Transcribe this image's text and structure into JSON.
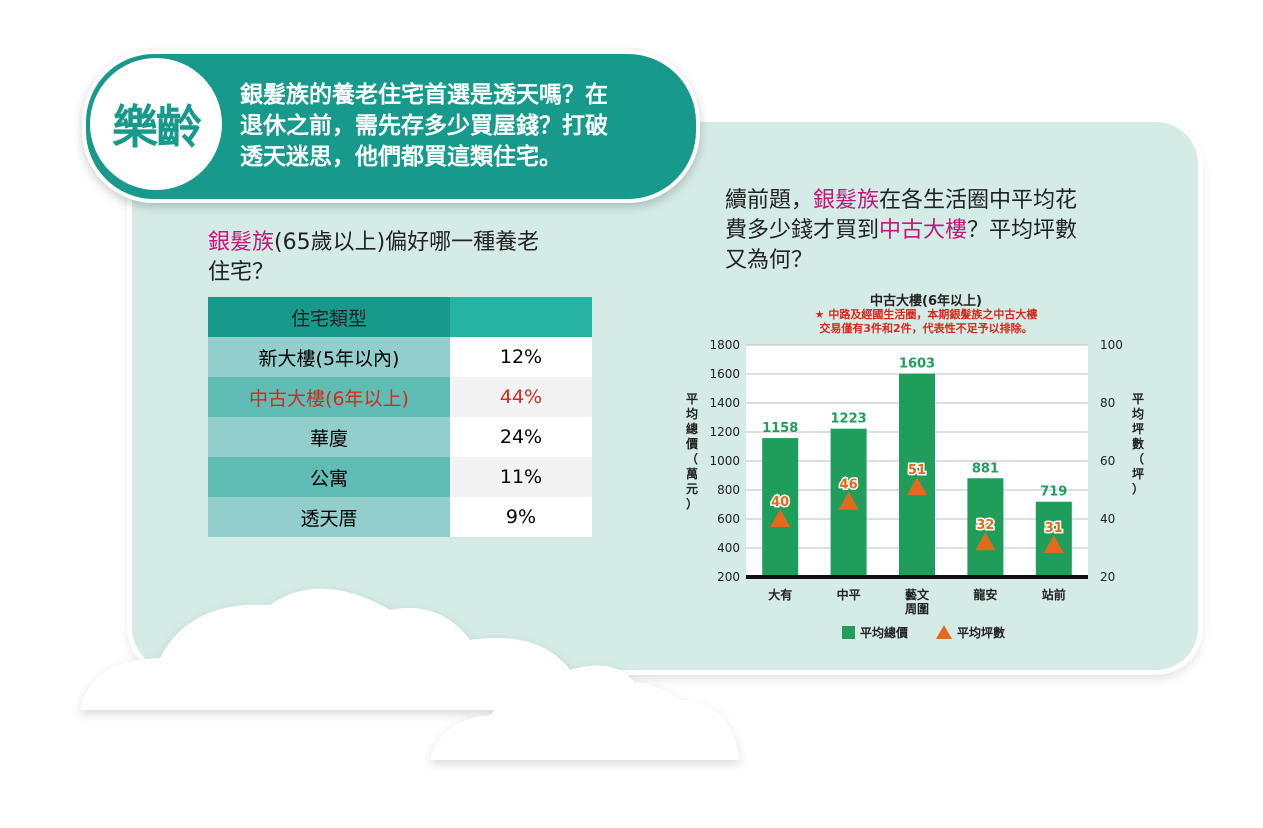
{
  "brand": "樂齡",
  "headline": [
    "銀髮族的養老住宅首選是透天嗎？在",
    "退休之前，需先存多少買屋錢？打破",
    "透天迷思，他們都買這類住宅。"
  ],
  "q1": {
    "pink": "銀髮族",
    "rest_line1": "(65歲以上)偏好哪一種養老",
    "line2": "住宅？"
  },
  "table": {
    "header": "住宅類型",
    "rows": [
      {
        "type": "新大樓(5年以內)",
        "value": "12%"
      },
      {
        "type": "中古大樓(6年以上)",
        "value": "44%"
      },
      {
        "type": "華廈",
        "value": "24%"
      },
      {
        "type": "公寓",
        "value": "11%"
      },
      {
        "type": "透天厝",
        "value": "9%"
      }
    ],
    "highlight_index": 1
  },
  "q2": {
    "line1_a": "續前題，",
    "line1_pink": "銀髮族",
    "line1_b": "在各生活圈中平均花",
    "line2_a": "費多少錢才買到",
    "line2_pink": "中古大樓",
    "line2_b": "？平均坪數",
    "line3": "又為何？"
  },
  "colors": {
    "teal": "#179a8c",
    "green": "#1e9e5a",
    "orange": "#e36a1c",
    "red": "#d42a1d",
    "pink": "#c2187a"
  },
  "chart_data": {
    "type": "bar",
    "title": "中古大樓(6年以上)",
    "note_line1": "中路及經國生活圈，本期銀髮族之中古大樓",
    "note_line2": "交易僅有3件和2件，代表性不足予以排除。",
    "categories": [
      "大有",
      "中平",
      "藝文\n周圍",
      "龍安",
      "站前"
    ],
    "y_left_label": "平均總價（萬元）",
    "y_right_label": "平均坪數（坪）",
    "y_left_ticks": [
      "200",
      "400",
      "600",
      "800",
      "1000",
      "1200",
      "1400",
      "1600",
      "1800"
    ],
    "y_right_ticks": [
      "20",
      "40",
      "60",
      "80",
      "100"
    ],
    "ylim_left": [
      200,
      1800
    ],
    "ylim_right": [
      20,
      100
    ],
    "series": [
      {
        "name": "平均總價",
        "type": "bar",
        "values": [
          1158,
          1223,
          1603,
          881,
          719
        ]
      },
      {
        "name": "平均坪數",
        "type": "marker",
        "values": [
          40,
          46,
          51,
          32,
          31
        ]
      }
    ],
    "bar_labels": [
      "1158",
      "1223",
      "1603",
      "881",
      "719"
    ],
    "marker_labels": [
      "40",
      "46",
      "51",
      "32",
      "31"
    ],
    "legend": [
      "平均總價",
      "平均坪數"
    ],
    "grid": true,
    "legend_position": "bottom"
  }
}
